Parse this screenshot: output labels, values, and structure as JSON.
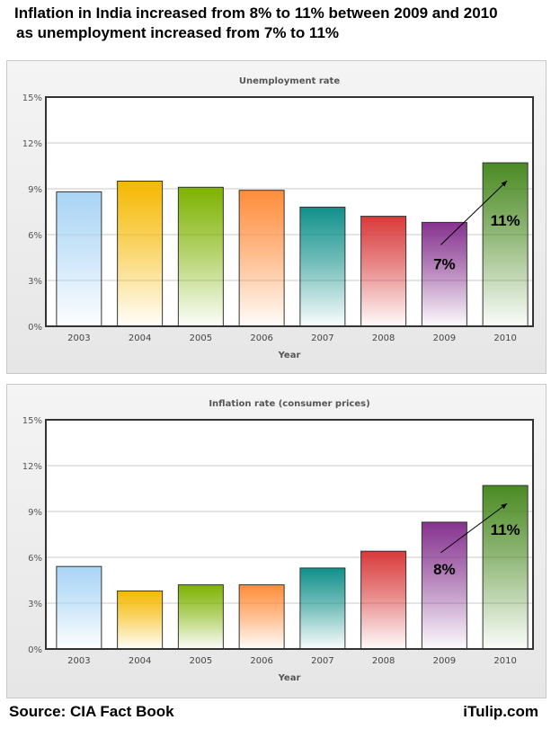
{
  "headline": [
    "Inflation in India increased from 8% to 11% between 2009 and 2010",
    "as unemployment increased from 7% to 11%"
  ],
  "chart_data": [
    {
      "type": "bar",
      "title": "Unemployment rate",
      "xlabel": "Year",
      "ylabel": "",
      "categories": [
        "2003",
        "2004",
        "2005",
        "2006",
        "2007",
        "2008",
        "2009",
        "2010"
      ],
      "values": [
        8.8,
        9.5,
        9.1,
        8.9,
        7.8,
        7.2,
        6.8,
        10.7
      ],
      "ylim": [
        0,
        15
      ],
      "yticks": [
        "0%",
        "3%",
        "6%",
        "9%",
        "12%",
        "15%"
      ],
      "grid": true,
      "annotations": [
        {
          "text": "7%",
          "category": "2009"
        },
        {
          "text": "11%",
          "category": "2010"
        }
      ]
    },
    {
      "type": "bar",
      "title": "Inflation rate (consumer prices)",
      "xlabel": "Year",
      "ylabel": "",
      "categories": [
        "2003",
        "2004",
        "2005",
        "2006",
        "2007",
        "2008",
        "2009",
        "2010"
      ],
      "values": [
        5.4,
        3.8,
        4.2,
        4.2,
        5.3,
        6.4,
        8.3,
        10.7
      ],
      "ylim": [
        0,
        15
      ],
      "yticks": [
        "0%",
        "3%",
        "6%",
        "9%",
        "12%",
        "15%"
      ],
      "grid": true,
      "annotations": [
        {
          "text": "8%",
          "category": "2009"
        },
        {
          "text": "11%",
          "category": "2010"
        }
      ]
    }
  ],
  "colors": [
    "#a8d4f5",
    "#f5b800",
    "#7db200",
    "#ff8c3a",
    "#10908a",
    "#d93a3a",
    "#86338f",
    "#4a8a22"
  ],
  "footer": {
    "source": "Source: CIA Fact Book",
    "brand": "iTulip.com"
  }
}
